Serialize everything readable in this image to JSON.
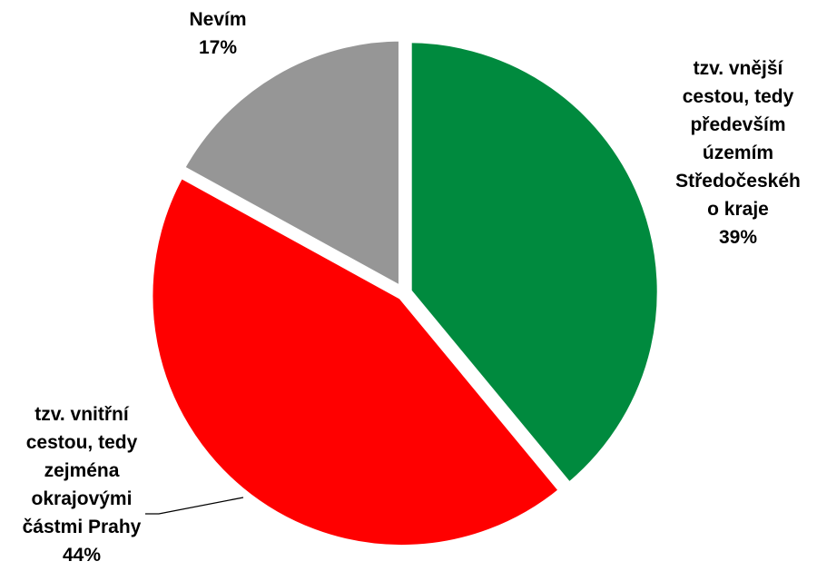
{
  "chart_data": {
    "type": "pie",
    "title": "",
    "slices": [
      {
        "label_lines": [
          "tzv. vnější",
          "cestou, tedy",
          "především",
          "územím",
          "Středočeskéh",
          "o kraje"
        ],
        "value": 39,
        "value_label": "39%",
        "color": "#008A3E"
      },
      {
        "label_lines": [
          "tzv. vnitřní",
          "cestou, tedy",
          "zejména",
          "okrajovými",
          "částmi Prahy"
        ],
        "value": 44,
        "value_label": "44%",
        "color": "#FF0000"
      },
      {
        "label_lines": [
          "Nevím"
        ],
        "value": 17,
        "value_label": "17%",
        "color": "#969696"
      }
    ],
    "start_angle": "12 o'clock",
    "direction": "clockwise",
    "legend": "none"
  }
}
